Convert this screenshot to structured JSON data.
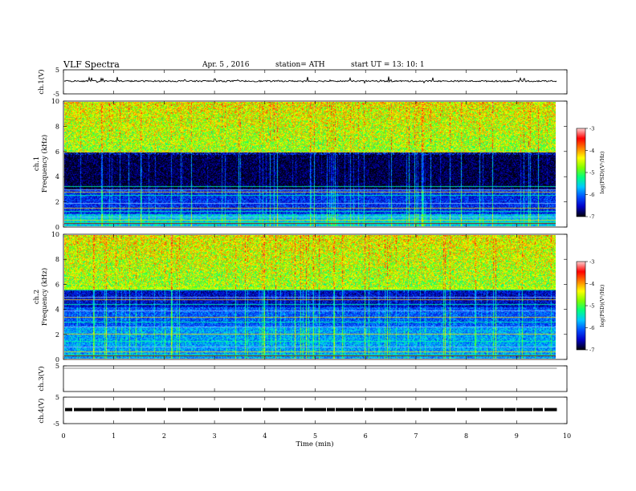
{
  "header": {
    "title": "VLF  Spectra",
    "date": "Apr. 5  , 2016",
    "station": "station= ATH",
    "start": "start  UT  =   13: 10: 1"
  },
  "colors": {
    "colormap": [
      "#000010",
      "#0000c8",
      "#0050ff",
      "#00c8ff",
      "#00ff80",
      "#80ff00",
      "#ffff00",
      "#ff8000",
      "#ff0000",
      "#ffc8c8"
    ],
    "trace": "#000000",
    "ch3_line": "#888888"
  },
  "chart_data": [
    {
      "type": "line",
      "name": "ch1-waveform",
      "ylabel": "ch.1(V)",
      "ylim": [
        -5,
        5
      ],
      "yticks": [
        "5",
        "-5"
      ],
      "baseline_v": 0.3,
      "x_range_min": [
        0,
        9.8
      ]
    },
    {
      "type": "heatmap",
      "name": "ch1-spectrogram",
      "ylabel_channel": "ch.1",
      "ylabel": "Frequency  (kHz)",
      "ylim": [
        0,
        10
      ],
      "yticks": [
        "0",
        "2",
        "4",
        "6",
        "8",
        "10"
      ],
      "x_range_min": [
        0,
        9.8
      ],
      "value_range_log": [
        -7,
        -3
      ],
      "bands": [
        {
          "f": [
            6.0,
            10.0
          ],
          "v": -4.6
        },
        {
          "f": [
            3.0,
            5.8
          ],
          "v": -6.9
        },
        {
          "f": [
            1.0,
            3.0
          ],
          "v": -6.3
        },
        {
          "f": [
            0.0,
            1.0
          ],
          "v": -5.6
        }
      ],
      "lines_khz": [
        0.3,
        0.5,
        0.8,
        1.2,
        1.5,
        1.9,
        2.5,
        2.8,
        3.0,
        3.2,
        6.0
      ],
      "colorbar_ticks": [
        "-3",
        "-4",
        "-5",
        "-6",
        "-7"
      ],
      "colorbar_label": "log(PSD)(V²/Hz)"
    },
    {
      "type": "heatmap",
      "name": "ch2-spectrogram",
      "ylabel_channel": "ch.2",
      "ylabel": "Frequency  (kHz)",
      "ylim": [
        0,
        10
      ],
      "yticks": [
        "0",
        "2",
        "4",
        "6",
        "8",
        "10"
      ],
      "x_range_min": [
        0,
        9.8
      ],
      "value_range_log": [
        -7,
        -3
      ],
      "bands": [
        {
          "f": [
            5.6,
            10.0
          ],
          "v": -4.6
        },
        {
          "f": [
            4.2,
            5.6
          ],
          "v": -6.5
        },
        {
          "f": [
            2.6,
            4.2
          ],
          "v": -6.1
        },
        {
          "f": [
            0.0,
            2.6
          ],
          "v": -5.8
        }
      ],
      "lines_khz": [
        0.3,
        0.6,
        1.0,
        1.4,
        2.0,
        2.6,
        3.0,
        3.4,
        3.9,
        4.4,
        4.8,
        5.0,
        5.6
      ],
      "colorbar_ticks": [
        "-3",
        "-4",
        "-5",
        "-6",
        "-7"
      ],
      "colorbar_label": "log(PSD)(V²/Hz)"
    },
    {
      "type": "line",
      "name": "ch3-waveform",
      "ylabel": "ch.3(V)",
      "ylim": [
        -5,
        5
      ],
      "yticks": [
        "5"
      ],
      "baseline_v": 5,
      "x_range_min": [
        0,
        9.8
      ]
    },
    {
      "type": "line",
      "name": "ch4-waveform",
      "ylabel": "ch.4(V)",
      "ylim": [
        -5,
        5
      ],
      "yticks": [
        "5",
        "-5"
      ],
      "baseline_v": 0,
      "x_range_min": [
        0,
        9.8
      ]
    }
  ],
  "xaxis": {
    "label": "Time  (min)",
    "ticks": [
      "0",
      "1",
      "2",
      "3",
      "4",
      "5",
      "6",
      "7",
      "8",
      "9",
      "10"
    ],
    "range": [
      0,
      10
    ]
  }
}
